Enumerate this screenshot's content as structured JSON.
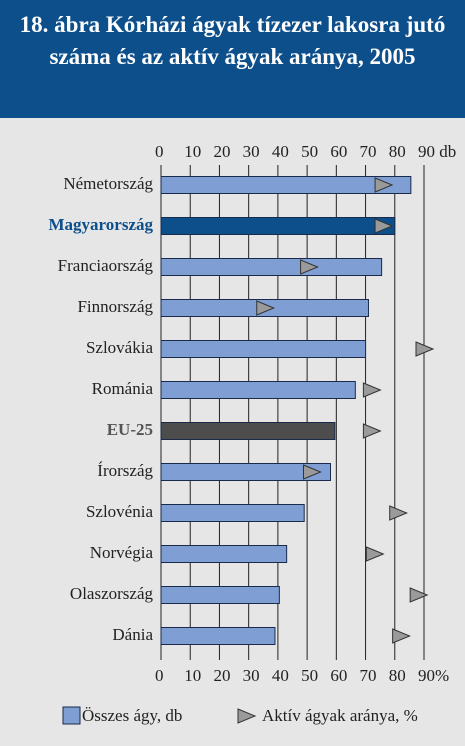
{
  "chart_data": {
    "type": "bar",
    "orientation": "horizontal",
    "title": "18. ábra Kórházi ágyak tízezer lakosra jutó száma és az aktív ágyak aránya, 2005",
    "categories": [
      "Németország",
      "Magyarország",
      "Franciaország",
      "Finnország",
      "Szlovákia",
      "Románia",
      "EU-25",
      "Írország",
      "Szlovénia",
      "Norvégia",
      "Olaszország",
      "Dánia"
    ],
    "category_colors": [
      "#222222",
      "#0d4f8b",
      "#222222",
      "#222222",
      "#222222",
      "#222222",
      "#555555",
      "#222222",
      "#222222",
      "#222222",
      "#222222",
      "#222222"
    ],
    "bar_colors": [
      "#7f9fd4",
      "#0d4f8b",
      "#7f9fd4",
      "#7f9fd4",
      "#7f9fd4",
      "#7f9fd4",
      "#4d4d4d",
      "#7f9fd4",
      "#7f9fd4",
      "#7f9fd4",
      "#7f9fd4",
      "#7f9fd4"
    ],
    "series": [
      {
        "name": "Összes ágy, db",
        "color": "#7f9fd4",
        "values": [
          85.5,
          80,
          75.5,
          71,
          70,
          66.5,
          59.5,
          58,
          49,
          43,
          40.5,
          39
        ]
      },
      {
        "name": "Aktív ágyak aránya, %",
        "color": "#9a9a9a",
        "axis": "x2",
        "values": [
          76,
          76,
          50.5,
          35.5,
          90,
          72,
          72,
          51.5,
          81,
          73,
          88,
          82
        ]
      }
    ],
    "xlim": [
      0,
      90
    ],
    "xticks": [
      0,
      10,
      20,
      30,
      40,
      50,
      60,
      70,
      80,
      {
        "value": 90,
        "label": "90 db"
      }
    ],
    "x2lim": [
      0,
      90
    ],
    "x2ticks": [
      0,
      10,
      20,
      30,
      40,
      50,
      60,
      70,
      80,
      {
        "value": 90,
        "label": "90%"
      }
    ],
    "grid": true
  }
}
